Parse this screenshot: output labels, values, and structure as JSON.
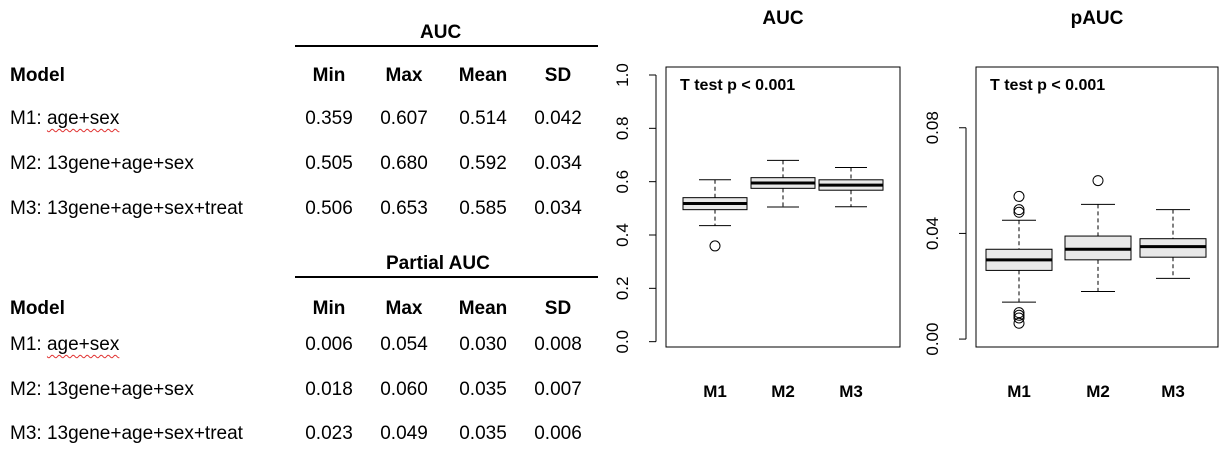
{
  "tables": [
    {
      "title": "AUC",
      "columns": [
        "Model",
        "Min",
        "Max",
        "Mean",
        "SD"
      ],
      "rows": [
        {
          "model_prefix": "M1: ",
          "model_terms": "age+sex",
          "min": "0.359",
          "max": "0.607",
          "mean": "0.514",
          "sd": "0.042"
        },
        {
          "model_prefix": "M2: ",
          "model_terms": "13gene+age+sex",
          "min": "0.505",
          "max": "0.680",
          "mean": "0.592",
          "sd": "0.034"
        },
        {
          "model_prefix": "M3: ",
          "model_terms": "13gene+age+sex+treat",
          "min": "0.506",
          "max": "0.653",
          "mean": "0.585",
          "sd": "0.034"
        }
      ]
    },
    {
      "title": "Partial AUC",
      "columns": [
        "Model",
        "Min",
        "Max",
        "Mean",
        "SD"
      ],
      "rows": [
        {
          "model_prefix": "M1: ",
          "model_terms": "age+sex",
          "min": "0.006",
          "max": "0.054",
          "mean": "0.030",
          "sd": "0.008"
        },
        {
          "model_prefix": "M2: ",
          "model_terms": "13gene+age+sex",
          "min": "0.018",
          "max": "0.060",
          "mean": "0.035",
          "sd": "0.007"
        },
        {
          "model_prefix": "M3: ",
          "model_terms": "13gene+age+sex+treat",
          "min": "0.023",
          "max": "0.049",
          "mean": "0.035",
          "sd": "0.006"
        }
      ]
    }
  ],
  "chart_data": [
    {
      "type": "boxplot",
      "title": "AUC",
      "annotation": "T test p < 0.001",
      "categories": [
        "M1",
        "M2",
        "M3"
      ],
      "ylim": [
        -0.02,
        1.03
      ],
      "yticks": [
        0.0,
        0.2,
        0.4,
        0.6,
        0.8,
        1.0
      ],
      "ytick_labels": [
        "0.0",
        "0.2",
        "0.4",
        "0.6",
        "0.8",
        "1.0"
      ],
      "box_fill": "#e8e8e8",
      "boxes": [
        {
          "category": "M1",
          "whisker_low": 0.435,
          "q1": 0.495,
          "median": 0.518,
          "q3": 0.54,
          "whisker_high": 0.607,
          "outliers": [
            0.359
          ]
        },
        {
          "category": "M2",
          "whisker_low": 0.505,
          "q1": 0.575,
          "median": 0.595,
          "q3": 0.615,
          "whisker_high": 0.68,
          "outliers": []
        },
        {
          "category": "M3",
          "whisker_low": 0.506,
          "q1": 0.568,
          "median": 0.587,
          "q3": 0.607,
          "whisker_high": 0.653,
          "outliers": []
        }
      ]
    },
    {
      "type": "boxplot",
      "title": "pAUC",
      "annotation": "T test p < 0.001",
      "categories": [
        "M1",
        "M2",
        "M3"
      ],
      "ylim": [
        -0.003,
        0.103
      ],
      "yticks": [
        0.0,
        0.04,
        0.08
      ],
      "ytick_labels": [
        "0.00",
        "0.04",
        "0.08"
      ],
      "box_fill": "#e8e8e8",
      "boxes": [
        {
          "category": "M1",
          "whisker_low": 0.014,
          "q1": 0.026,
          "median": 0.03,
          "q3": 0.034,
          "whisker_high": 0.045,
          "outliers": [
            0.054,
            0.049,
            0.048,
            0.01,
            0.009,
            0.008,
            0.006
          ]
        },
        {
          "category": "M2",
          "whisker_low": 0.018,
          "q1": 0.03,
          "median": 0.034,
          "q3": 0.039,
          "whisker_high": 0.051,
          "outliers": [
            0.06
          ]
        },
        {
          "category": "M3",
          "whisker_low": 0.023,
          "q1": 0.031,
          "median": 0.035,
          "q3": 0.038,
          "whisker_high": 0.049,
          "outliers": []
        }
      ]
    }
  ]
}
